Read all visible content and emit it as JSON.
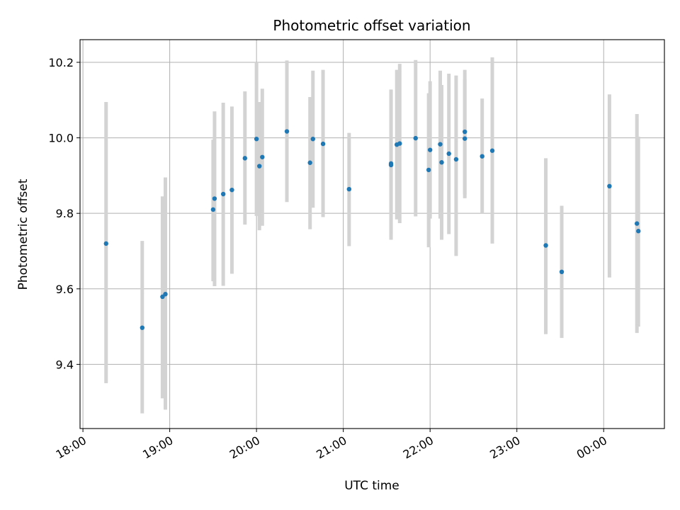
{
  "chart_data": {
    "type": "scatter",
    "title": "Photometric offset variation",
    "xlabel": "UTC time",
    "ylabel": "Photometric offset",
    "x_tick_labels": [
      "18:00",
      "19:00",
      "20:00",
      "21:00",
      "22:00",
      "23:00",
      "00:00"
    ],
    "y_tick_labels": [
      "9.4",
      "9.6",
      "9.8",
      "10.0",
      "10.2"
    ],
    "xlim": [
      "17:58",
      "00:42"
    ],
    "ylim": [
      9.23,
      10.26
    ],
    "grid": true,
    "colors": {
      "point": "#1f77b4",
      "errorbar": "#d3d3d3",
      "grid": "#b0b0b0"
    },
    "points": [
      {
        "x": "18:16",
        "y": 9.72,
        "lo": 9.35,
        "hi": 10.095
      },
      {
        "x": "18:41",
        "y": 9.497,
        "lo": 9.27,
        "hi": 9.727
      },
      {
        "x": "18:55",
        "y": 9.579,
        "lo": 9.31,
        "hi": 9.845
      },
      {
        "x": "18:57",
        "y": 9.586,
        "lo": 9.28,
        "hi": 9.895
      },
      {
        "x": "19:30",
        "y": 9.81,
        "lo": 9.62,
        "hi": 9.995
      },
      {
        "x": "19:31",
        "y": 9.839,
        "lo": 9.607,
        "hi": 10.07
      },
      {
        "x": "19:37",
        "y": 9.851,
        "lo": 9.608,
        "hi": 10.093
      },
      {
        "x": "19:43",
        "y": 9.862,
        "lo": 9.64,
        "hi": 10.083
      },
      {
        "x": "19:52",
        "y": 9.946,
        "lo": 9.77,
        "hi": 10.123
      },
      {
        "x": "20:00",
        "y": 9.997,
        "lo": 9.793,
        "hi": 10.2
      },
      {
        "x": "20:02",
        "y": 9.925,
        "lo": 9.755,
        "hi": 10.095
      },
      {
        "x": "20:04",
        "y": 9.949,
        "lo": 9.767,
        "hi": 10.13
      },
      {
        "x": "20:21",
        "y": 10.017,
        "lo": 9.83,
        "hi": 10.205
      },
      {
        "x": "20:37",
        "y": 9.934,
        "lo": 9.758,
        "hi": 10.108
      },
      {
        "x": "20:39",
        "y": 9.997,
        "lo": 9.815,
        "hi": 10.178
      },
      {
        "x": "20:46",
        "y": 9.984,
        "lo": 9.79,
        "hi": 10.18
      },
      {
        "x": "21:04",
        "y": 9.864,
        "lo": 9.713,
        "hi": 10.013
      },
      {
        "x": "21:33",
        "y": 9.928,
        "lo": 9.73,
        "hi": 10.125
      },
      {
        "x": "21:33",
        "y": 9.932,
        "lo": 9.74,
        "hi": 10.128
      },
      {
        "x": "21:37",
        "y": 9.982,
        "lo": 9.784,
        "hi": 10.18
      },
      {
        "x": "21:39",
        "y": 9.985,
        "lo": 9.774,
        "hi": 10.196
      },
      {
        "x": "21:50",
        "y": 9.999,
        "lo": 9.792,
        "hi": 10.206
      },
      {
        "x": "21:59",
        "y": 9.915,
        "lo": 9.71,
        "hi": 10.118
      },
      {
        "x": "22:00",
        "y": 9.968,
        "lo": 9.786,
        "hi": 10.15
      },
      {
        "x": "22:07",
        "y": 9.983,
        "lo": 9.786,
        "hi": 10.178
      },
      {
        "x": "22:08",
        "y": 9.935,
        "lo": 9.73,
        "hi": 10.14
      },
      {
        "x": "22:13",
        "y": 9.958,
        "lo": 9.745,
        "hi": 10.17
      },
      {
        "x": "22:18",
        "y": 9.943,
        "lo": 9.687,
        "hi": 10.165
      },
      {
        "x": "22:24",
        "y": 10.016,
        "lo": 9.85,
        "hi": 10.18
      },
      {
        "x": "22:24",
        "y": 9.998,
        "lo": 9.84,
        "hi": 10.155
      },
      {
        "x": "22:36",
        "y": 9.951,
        "lo": 9.8,
        "hi": 10.104
      },
      {
        "x": "22:43",
        "y": 9.966,
        "lo": 9.72,
        "hi": 10.213
      },
      {
        "x": "23:20",
        "y": 9.715,
        "lo": 9.48,
        "hi": 9.946
      },
      {
        "x": "23:31",
        "y": 9.645,
        "lo": 9.47,
        "hi": 9.82
      },
      {
        "x": "00:04",
        "y": 9.872,
        "lo": 9.63,
        "hi": 10.115
      },
      {
        "x": "00:23",
        "y": 9.773,
        "lo": 9.483,
        "hi": 10.063
      },
      {
        "x": "00:24",
        "y": 9.753,
        "lo": 9.5,
        "hi": 10.003
      }
    ]
  }
}
